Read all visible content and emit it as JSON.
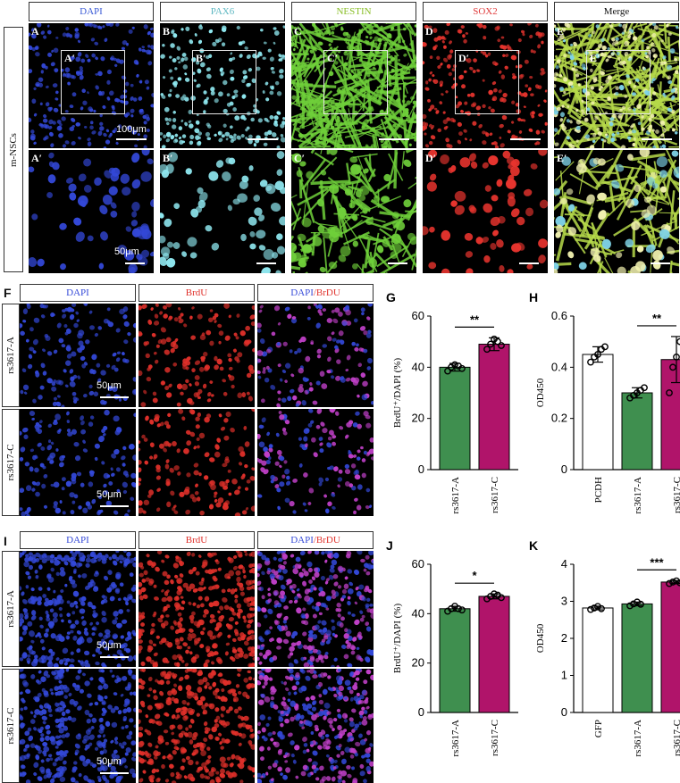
{
  "top_block": {
    "headers": [
      "DAPI",
      "PAX6",
      "NESTIN",
      "SOX2",
      "Merge"
    ],
    "header_colors": [
      "#3b5bd6",
      "#5fb8c2",
      "#8bbf2a",
      "#e03a3a",
      "#111111"
    ],
    "row_label": "m-NSCs",
    "row1_labels": [
      "A",
      "B",
      "C",
      "D",
      "E"
    ],
    "inset_labels": [
      "A′",
      "B′",
      "C′",
      "D′",
      "E′"
    ],
    "row2_labels": [
      "A′",
      "B′",
      "C′",
      "D′",
      "E′"
    ],
    "scale_top": "100μm",
    "scale_bottom": "50μm"
  },
  "block_f": {
    "letter": "F",
    "headers": [
      "DAPI",
      "BrdU",
      "DAPI/BrDU"
    ],
    "rows": [
      "rs3617-A",
      "rs3617-C"
    ],
    "scale": "50μm"
  },
  "block_i": {
    "letter": "I",
    "headers": [
      "DAPI",
      "BrdU",
      "DAPI/BrDU"
    ],
    "rows": [
      "rs3617-A",
      "rs3617-C"
    ],
    "scale": "50μm"
  },
  "colors": {
    "dapi": "#3348d8",
    "pax6": "#8fe8f0",
    "nestin": "#6fcf3a",
    "sox2": "#e8342e",
    "merge_nuc": "#f2f2b0",
    "brdu": "#e0302a",
    "overlay": "#c040c8",
    "green_bar": "#3f8f4f",
    "magenta_bar": "#b0146a"
  },
  "chart_data": [
    {
      "panel": "G",
      "type": "bar",
      "categories": [
        "rs3617-A",
        "rs3617-C"
      ],
      "values": [
        40,
        49
      ],
      "errors": [
        1.5,
        2.5
      ],
      "points": [
        [
          38.5,
          40,
          41,
          40.5,
          39.5
        ],
        [
          47,
          49,
          51,
          50,
          48.5
        ]
      ],
      "ylabel": "BrdU⁺/DAPI (%)",
      "ylim": [
        0,
        60
      ],
      "yticks": [
        0,
        20,
        40,
        60
      ],
      "significance": "**",
      "colors": [
        "#3f8f4f",
        "#b0146a"
      ]
    },
    {
      "panel": "H",
      "type": "bar",
      "categories": [
        "PCDH",
        "rs3617-A",
        "rs3617-C"
      ],
      "values": [
        0.45,
        0.3,
        0.43
      ],
      "errors": [
        0.03,
        0.02,
        0.09
      ],
      "points": [
        [
          0.42,
          0.44,
          0.45,
          0.47,
          0.48
        ],
        [
          0.28,
          0.29,
          0.3,
          0.31,
          0.32
        ],
        [
          0.3,
          0.4,
          0.44,
          0.5,
          0.52
        ]
      ],
      "ylabel": "OD450",
      "ylim": [
        0,
        0.6
      ],
      "yticks": [
        "0",
        "0.2",
        "0.4",
        "0.6"
      ],
      "significance": "**",
      "colors": [
        "#ffffff",
        "#3f8f4f",
        "#b0146a"
      ]
    },
    {
      "panel": "J",
      "type": "bar",
      "categories": [
        "rs3617-A",
        "rs3617-C"
      ],
      "values": [
        42,
        47
      ],
      "errors": [
        1,
        1
      ],
      "points": [
        [
          41,
          42,
          43,
          42,
          41.5
        ],
        [
          46,
          47,
          48,
          47.5,
          46.5
        ]
      ],
      "ylabel": "BrdU⁺/DAPI (%)",
      "ylim": [
        0,
        60
      ],
      "yticks": [
        0,
        20,
        40,
        60
      ],
      "significance": "*",
      "colors": [
        "#3f8f4f",
        "#b0146a"
      ]
    },
    {
      "panel": "K",
      "type": "bar",
      "categories": [
        "GFP",
        "rs3617-A",
        "rs3617-C"
      ],
      "values": [
        2.82,
        2.93,
        3.52
      ],
      "errors": [
        0.05,
        0.05,
        0.04
      ],
      "points": [
        [
          2.78,
          2.82,
          2.86,
          2.8
        ],
        [
          2.88,
          2.93,
          2.98,
          2.92
        ],
        [
          3.48,
          3.52,
          3.55,
          3.5
        ]
      ],
      "ylabel": "OD450",
      "ylim": [
        0,
        4
      ],
      "yticks": [
        0,
        1,
        2,
        3,
        4
      ],
      "significance": "***",
      "colors": [
        "#ffffff",
        "#3f8f4f",
        "#b0146a"
      ]
    }
  ]
}
